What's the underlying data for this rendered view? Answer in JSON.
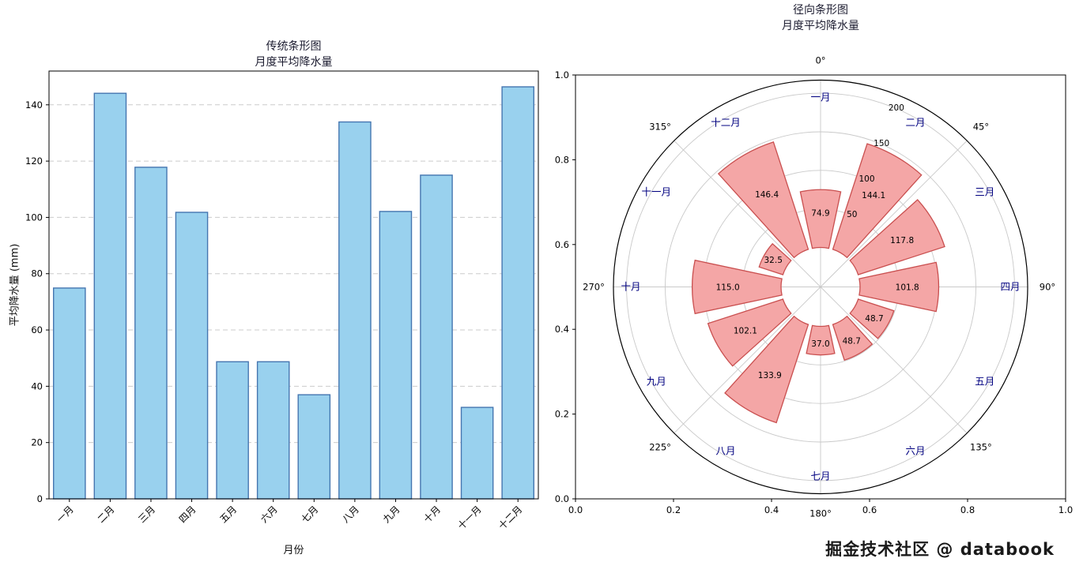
{
  "figure": {
    "watermark": "掘金技术社区 @ databook"
  },
  "chart_data": [
    {
      "type": "bar",
      "title": "传统条形图",
      "subtitle": "月度平均降水量",
      "xlabel": "月份",
      "ylabel": "平均降水量 (mm)",
      "categories": [
        "一月",
        "二月",
        "三月",
        "四月",
        "五月",
        "六月",
        "七月",
        "八月",
        "九月",
        "十月",
        "十一月",
        "十二月"
      ],
      "values": [
        74.9,
        144.1,
        117.8,
        101.8,
        48.7,
        48.7,
        37.0,
        133.9,
        102.1,
        115.0,
        32.5,
        146.4
      ],
      "ylim": [
        0,
        152
      ],
      "yticks": [
        0,
        20,
        40,
        60,
        80,
        100,
        120,
        140
      ],
      "grid": true,
      "colors": {
        "bar_fill": "#99d1ee",
        "bar_edge": "#4576b0",
        "grid": "#cccccc",
        "axis": "#000000"
      }
    },
    {
      "type": "radial-bar",
      "title": "径向条形图",
      "subtitle": "月度平均降水量",
      "categories": [
        "一月",
        "二月",
        "三月",
        "四月",
        "五月",
        "六月",
        "七月",
        "八月",
        "九月",
        "十月",
        "十一月",
        "十二月"
      ],
      "values": [
        74.9,
        144.1,
        117.8,
        101.8,
        48.7,
        48.7,
        37.0,
        133.9,
        102.1,
        115.0,
        32.5,
        146.4
      ],
      "radial_ticks": [
        50,
        100,
        150,
        200
      ],
      "radial_max": 217,
      "angle_tick_labels": [
        "0°",
        "45°",
        "90°",
        "135°",
        "180°",
        "225°",
        "270°",
        "315°"
      ],
      "outer_axis": {
        "xticks": [
          "0.0",
          "0.2",
          "0.4",
          "0.6",
          "0.8",
          "1.0"
        ],
        "yticks": [
          "0.0",
          "0.2",
          "0.4",
          "0.6",
          "0.8",
          "1.0"
        ]
      },
      "colors": {
        "bar_fill": "#f4a6a6",
        "bar_edge": "#c94f4f",
        "month_label": "#000080",
        "grid": "#c9c9c9",
        "axis": "#000000"
      }
    }
  ]
}
